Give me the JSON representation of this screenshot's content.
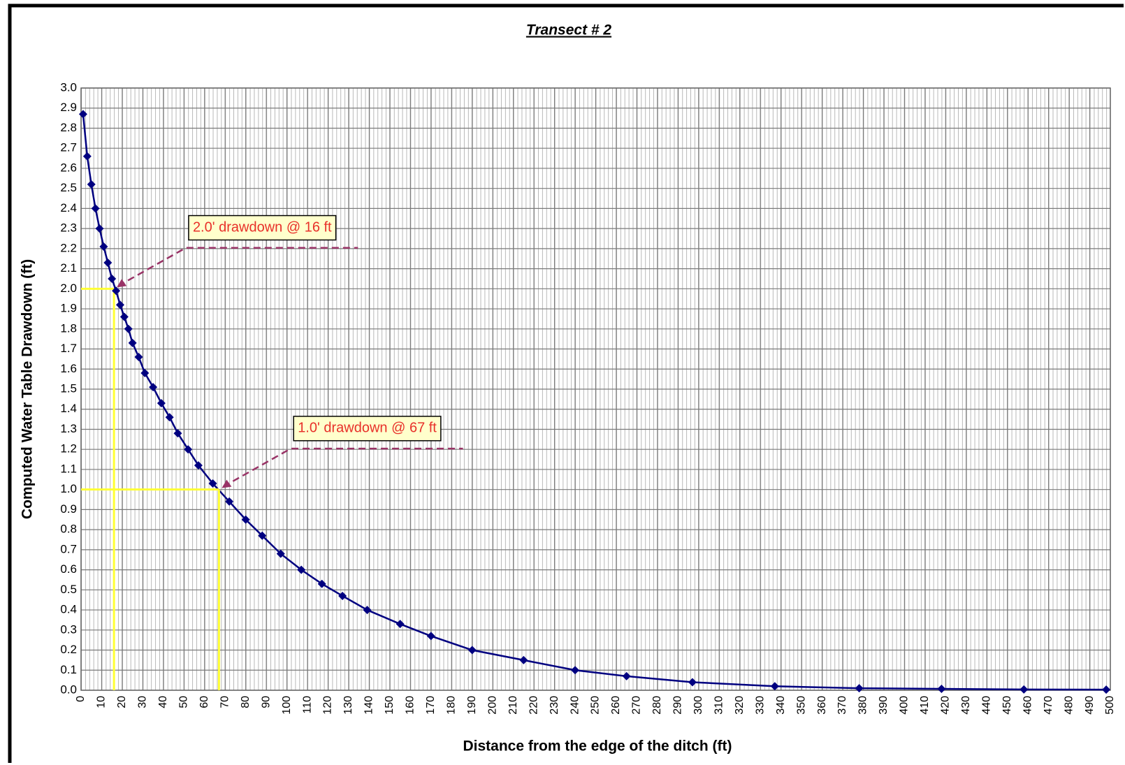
{
  "chart_data": {
    "type": "line",
    "title": "Transect # 2",
    "xlabel": "Distance from the edge of the ditch (ft)",
    "ylabel": "Computed Water Table Drawdown (ft)",
    "x": [
      1,
      3,
      5,
      7,
      9,
      11,
      13,
      15,
      17,
      19,
      21,
      23,
      25,
      28,
      31,
      35,
      39,
      43,
      47,
      52,
      57,
      64,
      72,
      80,
      88,
      97,
      107,
      117,
      127,
      139,
      155,
      170,
      190,
      215,
      240,
      265,
      297,
      337,
      378,
      418,
      458,
      498
    ],
    "series": [
      {
        "color": "#000080",
        "values": [
          2.87,
          2.66,
          2.52,
          2.4,
          2.3,
          2.21,
          2.13,
          2.05,
          1.99,
          1.92,
          1.86,
          1.8,
          1.73,
          1.66,
          1.58,
          1.51,
          1.43,
          1.36,
          1.28,
          1.2,
          1.12,
          1.03,
          0.94,
          0.85,
          0.77,
          0.68,
          0.6,
          0.53,
          0.47,
          0.4,
          0.33,
          0.27,
          0.2,
          0.15,
          0.1,
          0.07,
          0.04,
          0.02,
          0.01,
          0.007,
          0.004,
          0.003
        ]
      }
    ],
    "xlim": [
      0,
      500
    ],
    "xticks": [
      0,
      10,
      20,
      30,
      40,
      50,
      60,
      70,
      80,
      90,
      100,
      110,
      120,
      130,
      140,
      150,
      160,
      170,
      180,
      190,
      200,
      210,
      220,
      230,
      240,
      250,
      260,
      270,
      280,
      290,
      300,
      310,
      320,
      330,
      340,
      350,
      360,
      370,
      380,
      390,
      400,
      410,
      420,
      430,
      440,
      450,
      460,
      470,
      480,
      490,
      500
    ],
    "ylim": [
      0,
      3
    ],
    "yticks": [
      {
        "value": 0,
        "label": "0.0"
      },
      0.1,
      0.2,
      0.3,
      0.4,
      0.5,
      0.6,
      0.7,
      0.8,
      0.9,
      {
        "value": 1,
        "label": "1.0"
      },
      1.1,
      1.2,
      1.3,
      1.4,
      1.5,
      1.6,
      1.7,
      1.8,
      1.9,
      {
        "value": 2,
        "label": "2.0"
      },
      2.1,
      2.2,
      2.3,
      2.4,
      2.5,
      2.6,
      2.7,
      2.8,
      2.9,
      {
        "value": 3,
        "label": "3.0"
      }
    ],
    "grid": true,
    "annotations": [
      {
        "text": "2.0' drawdown @ 16 ft",
        "x": 16,
        "y": 2.0
      },
      {
        "text": "1.0' drawdown @ 67 ft",
        "x": 67,
        "y": 1.0
      }
    ]
  }
}
